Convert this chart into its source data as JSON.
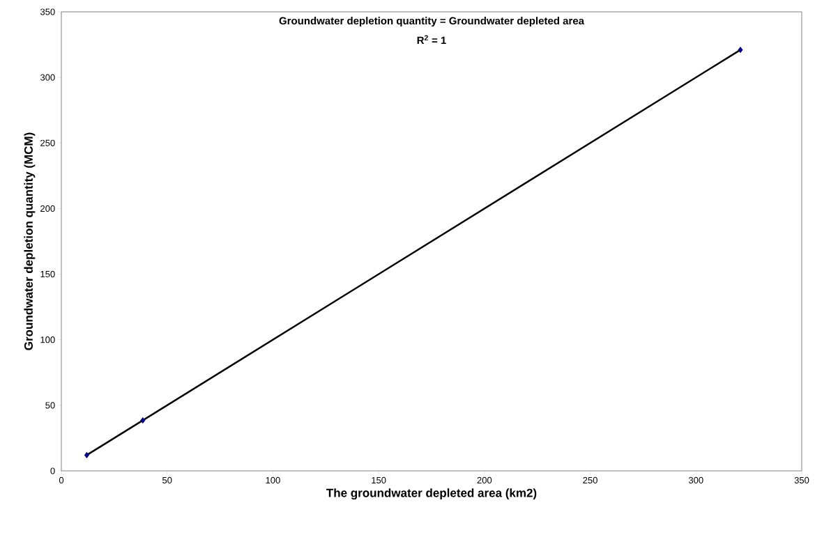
{
  "chart_data": {
    "type": "scatter",
    "xlabel": "The groundwater depleted area (km2)",
    "ylabel": "Groundwater depletion quantity (MCM)",
    "annotations": [
      "Groundwater depletion quantity  = Groundwater depleted area",
      "R$^{2}$ = 1"
    ],
    "series": [
      {
        "color": "#000080",
        "marker": "diamond",
        "x": [
          12,
          38.5,
          321
        ],
        "values": [
          12,
          38.5,
          321
        ]
      },
      {
        "type": "line",
        "color": "#000000",
        "line_style": "solid",
        "x": [
          12,
          321
        ],
        "values": [
          12,
          321
        ]
      }
    ],
    "xlim": [
      0,
      350
    ],
    "ylim": [
      0,
      350
    ],
    "xticks": [
      0,
      50,
      100,
      150,
      200,
      250,
      300,
      350
    ],
    "yticks": [
      0,
      50,
      100,
      150,
      200,
      250,
      300,
      350
    ],
    "grid": false
  }
}
